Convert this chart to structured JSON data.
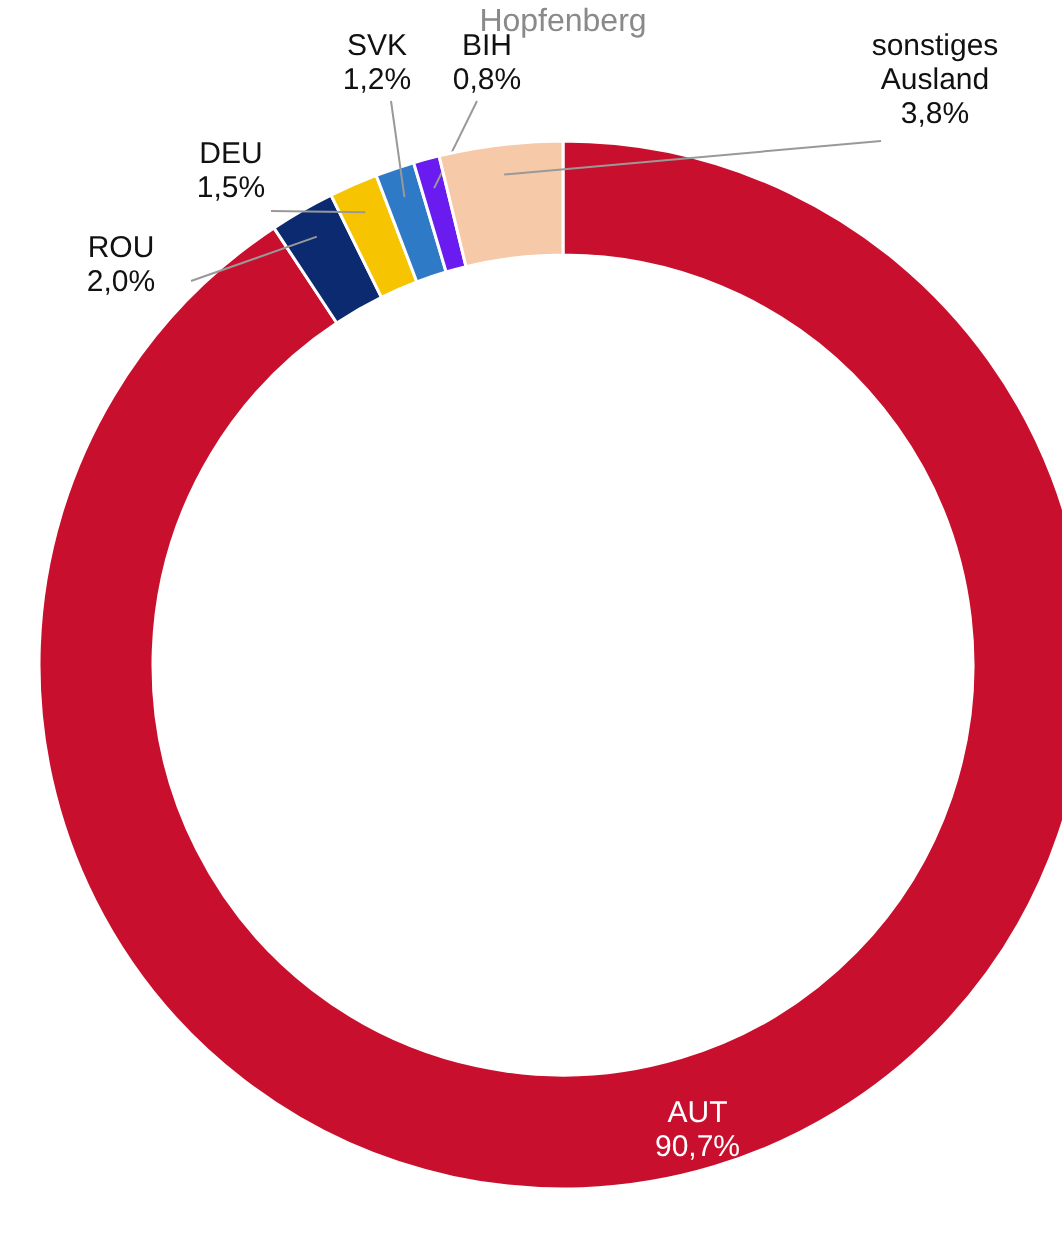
{
  "chart_data": {
    "type": "donut",
    "title": "Hopfenberg",
    "categories": [
      "AUT",
      "ROU",
      "DEU",
      "SVK",
      "BIH",
      "sonstiges Ausland"
    ],
    "values": [
      90.7,
      2.0,
      1.5,
      1.2,
      0.8,
      3.8
    ],
    "value_labels": [
      "90,7%",
      "2,0%",
      "1,5%",
      "1,2%",
      "0,8%",
      "3,8%"
    ],
    "colors": [
      "#c8102e",
      "#0b2a6f",
      "#f6c400",
      "#2f7ac6",
      "#6a1cf0",
      "#f6c9a8"
    ]
  }
}
